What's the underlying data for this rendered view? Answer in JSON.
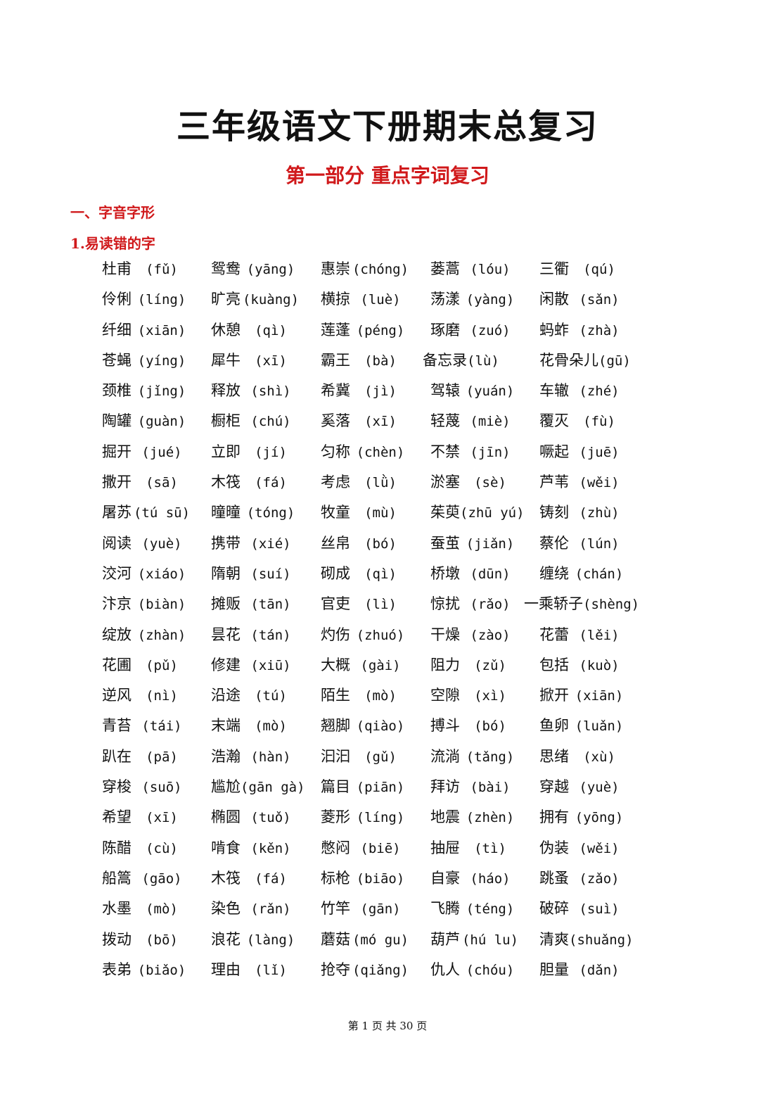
{
  "title": "三年级语文下册期末总复习",
  "subtitle": "第一部分  重点字词复习",
  "section": "一、字音字形",
  "subsection": "1.易读错的字",
  "rows": [
    [
      [
        "杜甫",
        "fǔ"
      ],
      [
        "鸳鸯",
        "yāng"
      ],
      [
        "惠崇",
        "chóng"
      ],
      [
        "蒌蒿",
        "lóu"
      ],
      [
        "三衢",
        "qú"
      ]
    ],
    [
      [
        "伶俐",
        "líng"
      ],
      [
        "旷亮",
        "kuàng"
      ],
      [
        "横掠",
        "luè"
      ],
      [
        "荡漾",
        "yàng"
      ],
      [
        "闲散",
        "sǎn"
      ]
    ],
    [
      [
        "纤细",
        "xiān"
      ],
      [
        "休憩",
        "qì"
      ],
      [
        "莲蓬",
        "péng"
      ],
      [
        "琢磨",
        "zuó"
      ],
      [
        "蚂蚱",
        "zhà"
      ]
    ],
    [
      [
        "苍蝇",
        "yíng"
      ],
      [
        "犀牛",
        "xī"
      ],
      [
        "霸王",
        "bà"
      ],
      [
        "备忘录",
        "lù"
      ],
      [
        "花骨朵儿",
        "gū"
      ]
    ],
    [
      [
        "颈椎",
        "jǐng"
      ],
      [
        "释放",
        "shì"
      ],
      [
        "希冀",
        "jì"
      ],
      [
        "驾辕",
        "yuán"
      ],
      [
        "车辙",
        "zhé"
      ]
    ],
    [
      [
        "陶罐",
        "guàn"
      ],
      [
        "橱柜",
        "chú"
      ],
      [
        "奚落",
        "xī"
      ],
      [
        "轻蔑",
        "miè"
      ],
      [
        "覆灭",
        "fù"
      ]
    ],
    [
      [
        "掘开",
        "jué"
      ],
      [
        "立即",
        "jí"
      ],
      [
        "匀称",
        "chèn"
      ],
      [
        "不禁",
        "jīn"
      ],
      [
        "噘起",
        "juē"
      ]
    ],
    [
      [
        "撒开",
        "sā"
      ],
      [
        "木筏",
        "fá"
      ],
      [
        "考虑",
        "lǜ"
      ],
      [
        "淤塞",
        "sè"
      ],
      [
        "芦苇",
        "wěi"
      ]
    ],
    [
      [
        "屠苏",
        "tú sū"
      ],
      [
        "曈曈",
        "tóng"
      ],
      [
        "牧童",
        "mù"
      ],
      [
        "茱萸",
        "zhū yú"
      ],
      [
        "铸刻",
        "zhù"
      ]
    ],
    [
      [
        "阅读",
        "yuè"
      ],
      [
        "携带",
        "xié"
      ],
      [
        "丝帛",
        "bó"
      ],
      [
        "蚕茧",
        "jiǎn"
      ],
      [
        "蔡伦",
        "lún"
      ]
    ],
    [
      [
        "洨河",
        "xiáo"
      ],
      [
        "隋朝",
        "suí"
      ],
      [
        "砌成",
        "qì"
      ],
      [
        "桥墩",
        "dūn"
      ],
      [
        "缠绕",
        "chán"
      ]
    ],
    [
      [
        "汴京",
        "biàn"
      ],
      [
        "摊贩",
        "tān"
      ],
      [
        "官吏",
        "lì"
      ],
      [
        "惊扰",
        "rǎo"
      ],
      [
        "一乘轿子",
        "shèng"
      ]
    ],
    [
      [
        "绽放",
        "zhàn"
      ],
      [
        "昙花",
        "tán"
      ],
      [
        "灼伤",
        "zhuó"
      ],
      [
        "干燥",
        "zào"
      ],
      [
        "花蕾",
        "lěi"
      ]
    ],
    [
      [
        "花圃",
        "pǔ"
      ],
      [
        "修建",
        "xiū"
      ],
      [
        "大概",
        "gài"
      ],
      [
        "阻力",
        "zǔ"
      ],
      [
        "包括",
        "kuò"
      ]
    ],
    [
      [
        "逆风",
        "nì"
      ],
      [
        "沿途",
        "tú"
      ],
      [
        "陌生",
        "mò"
      ],
      [
        "空隙",
        "xì"
      ],
      [
        "掀开",
        "xiān"
      ]
    ],
    [
      [
        "青苔",
        "tái"
      ],
      [
        "末端",
        "mò"
      ],
      [
        "翘脚",
        "qiào"
      ],
      [
        "搏斗",
        "bó"
      ],
      [
        "鱼卵",
        "luǎn"
      ]
    ],
    [
      [
        "趴在",
        "pā"
      ],
      [
        "浩瀚",
        "hàn"
      ],
      [
        "汩汩",
        "gǔ"
      ],
      [
        "流淌",
        "tǎng"
      ],
      [
        "思绪",
        "xù"
      ]
    ],
    [
      [
        "穿梭",
        "suō"
      ],
      [
        "尴尬",
        "gān gà"
      ],
      [
        "篇目",
        "piān"
      ],
      [
        "拜访",
        "bài"
      ],
      [
        "穿越",
        "yuè"
      ]
    ],
    [
      [
        "希望",
        "xī"
      ],
      [
        "椭圆",
        "tuǒ"
      ],
      [
        "菱形",
        "líng"
      ],
      [
        "地震",
        "zhèn"
      ],
      [
        "拥有",
        "yōng"
      ]
    ],
    [
      [
        "陈醋",
        "cù"
      ],
      [
        "啃食",
        "kěn"
      ],
      [
        "憋闷",
        "biē"
      ],
      [
        "抽屉",
        "tì"
      ],
      [
        "伪装",
        "wěi"
      ]
    ],
    [
      [
        "船篙",
        "gāo"
      ],
      [
        "木筏",
        "fá"
      ],
      [
        "标枪",
        "biāo"
      ],
      [
        "自豪",
        "háo"
      ],
      [
        "跳蚤",
        "zǎo"
      ]
    ],
    [
      [
        "水墨",
        "mò"
      ],
      [
        "染色",
        "rǎn"
      ],
      [
        "竹竿",
        "gān"
      ],
      [
        "飞腾",
        "téng"
      ],
      [
        "破碎",
        "suì"
      ]
    ],
    [
      [
        "拨动",
        "bō"
      ],
      [
        "浪花",
        "làng"
      ],
      [
        "蘑菇",
        "mó gu"
      ],
      [
        "葫芦",
        "hú lu"
      ],
      [
        "清爽",
        "shuǎng"
      ]
    ],
    [
      [
        "表弟",
        "biǎo"
      ],
      [
        "理由",
        "lǐ"
      ],
      [
        "抢夺",
        "qiǎng"
      ],
      [
        "仇人",
        "chóu"
      ],
      [
        "胆量",
        "dǎn"
      ]
    ]
  ],
  "footer": "第 1 页 共 30 页"
}
